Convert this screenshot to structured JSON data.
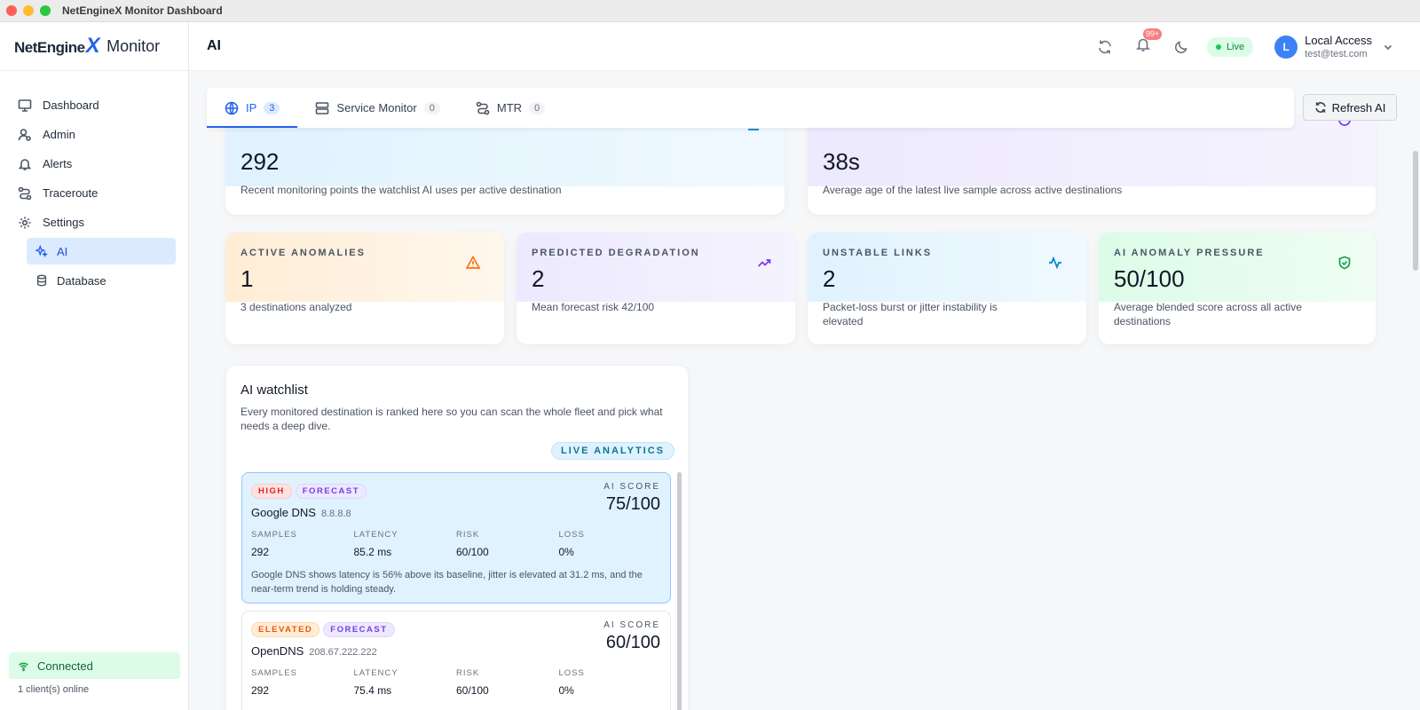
{
  "window": {
    "title": "NetEngineX Monitor Dashboard"
  },
  "brand": {
    "logo": "NetEngine",
    "logo_x": "X",
    "name": "Monitor"
  },
  "sidebar": {
    "items": [
      {
        "label": "Dashboard",
        "icon": "monitor-icon"
      },
      {
        "label": "Admin",
        "icon": "user-gear-icon"
      },
      {
        "label": "Alerts",
        "icon": "bell-icon"
      },
      {
        "label": "Traceroute",
        "icon": "route-icon"
      },
      {
        "label": "Settings",
        "icon": "gear-icon"
      }
    ],
    "sub_items": [
      {
        "label": "AI",
        "icon": "sparkles-icon",
        "active": true
      },
      {
        "label": "Database",
        "icon": "database-icon",
        "active": false
      }
    ],
    "status": "Connected",
    "clients": "1 client(s) online"
  },
  "header": {
    "title": "AI",
    "notifications_badge": "99+",
    "live_label": "Live",
    "user": {
      "initial": "L",
      "name": "Local Access",
      "email": "test@test.com"
    }
  },
  "tabs": [
    {
      "label": "IP",
      "count": "3",
      "active": true
    },
    {
      "label": "Service Monitor",
      "count": "0",
      "active": false
    },
    {
      "label": "MTR",
      "count": "0",
      "active": false
    }
  ],
  "refresh_label": "Refresh AI",
  "top_stats": [
    {
      "value": "292",
      "desc": "Recent monitoring points the watchlist AI uses per active destination"
    },
    {
      "value": "38s",
      "desc": "Average age of the latest live sample across active destinations"
    }
  ],
  "stats": [
    {
      "label": "ACTIVE ANOMALIES",
      "value": "1",
      "desc": "3 destinations analyzed",
      "color": "#f97316"
    },
    {
      "label": "PREDICTED DEGRADATION",
      "value": "2",
      "desc": "Mean forecast risk 42/100",
      "color": "#7c3aed"
    },
    {
      "label": "UNSTABLE LINKS",
      "value": "2",
      "desc": "Packet-loss burst or jitter instability is elevated",
      "color": "#0284c7"
    },
    {
      "label": "AI ANOMALY PRESSURE",
      "value": "50/100",
      "desc": "Average blended score across all active destinations",
      "color": "#16a34a"
    }
  ],
  "watchlist": {
    "title": "AI watchlist",
    "subtitle": "Every monitored destination is ranked here so you can scan the whole fleet and pick what needs a deep dive.",
    "live_label": "LIVE ANALYTICS",
    "score_label": "AI SCORE",
    "metric_labels": [
      "SAMPLES",
      "LATENCY",
      "RISK",
      "LOSS"
    ],
    "items": [
      {
        "level": "HIGH",
        "tag": "FORECAST",
        "name": "Google DNS",
        "ip": "8.8.8.8",
        "score": "75/100",
        "samples": "292",
        "latency": "85.2 ms",
        "risk": "60/100",
        "loss": "0%",
        "desc": "Google DNS shows latency is 56% above its baseline, jitter is elevated at 31.2 ms, and the near-term trend is holding steady."
      },
      {
        "level": "ELEVATED",
        "tag": "FORECAST",
        "name": "OpenDNS",
        "ip": "208.67.222.222",
        "score": "60/100",
        "samples": "292",
        "latency": "75.4 ms",
        "risk": "60/100",
        "loss": "0%"
      }
    ]
  }
}
